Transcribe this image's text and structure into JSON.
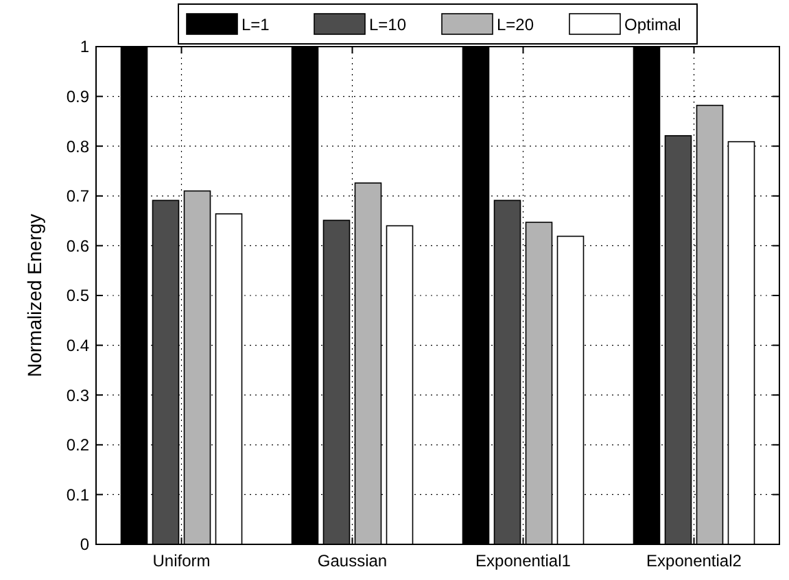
{
  "chart_data": {
    "type": "bar",
    "ylabel": "Normalized Energy",
    "categories": [
      "Uniform",
      "Gaussian",
      "Exponential1",
      "Exponential2"
    ],
    "series": [
      {
        "name": "L=1",
        "color": "#000000",
        "values": [
          1,
          1,
          1,
          1
        ]
      },
      {
        "name": "L=10",
        "color": "#4d4d4d",
        "values": [
          0.691,
          0.651,
          0.691,
          0.821
        ]
      },
      {
        "name": "L=20",
        "color": "#b3b3b3",
        "values": [
          0.71,
          0.726,
          0.647,
          0.882
        ]
      },
      {
        "name": "Optimal",
        "color": "#ffffff",
        "values": [
          0.664,
          0.64,
          0.619,
          0.809
        ]
      }
    ],
    "ylim": [
      0,
      1
    ],
    "yticks": [
      0,
      0.1,
      0.2,
      0.3,
      0.4,
      0.5,
      0.6,
      0.7,
      0.8,
      0.9,
      1
    ],
    "grid": true,
    "legend": "top"
  }
}
